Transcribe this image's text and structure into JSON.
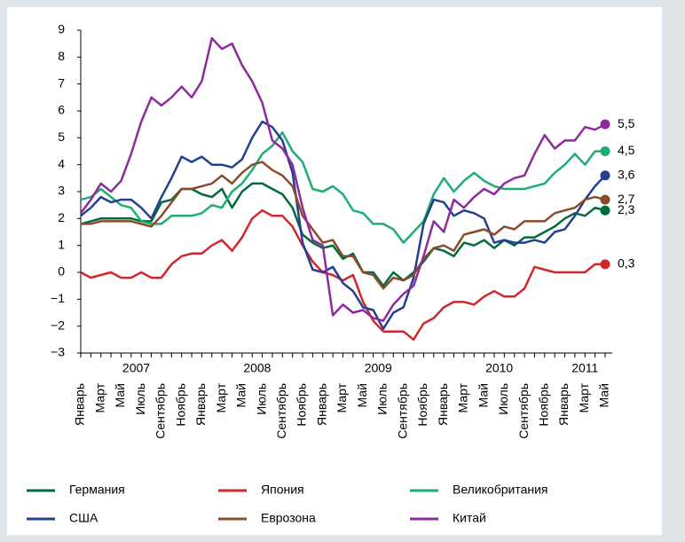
{
  "chart_data": {
    "type": "line",
    "categories": [
      "Январь",
      null,
      "Март",
      null,
      "Май",
      null,
      "Июль",
      null,
      "Сентябрь",
      null,
      "Ноябрь",
      null,
      "Январь",
      null,
      "Март",
      null,
      "Май",
      null,
      "Июль",
      null,
      "Сентябрь",
      null,
      "Ноябрь",
      null,
      "Январь",
      null,
      "Март",
      null,
      "Май",
      null,
      "Июль",
      null,
      "Сентябрь",
      null,
      "Ноябрь",
      null,
      "Январь",
      null,
      "Март",
      null,
      "Май",
      null,
      "Июль",
      null,
      "Сентябрь",
      null,
      "Ноябрь",
      null,
      "Январь",
      null,
      "Март",
      null,
      "Май"
    ],
    "year_labels": [
      "2007",
      "2008",
      "2009",
      "2010",
      "2011"
    ],
    "ylim": [
      -3,
      9
    ],
    "yticks": [
      {
        "value": -3,
        "label": "−3"
      },
      {
        "value": -2,
        "label": "−2"
      },
      {
        "value": -1,
        "label": "−1"
      },
      0,
      1,
      2,
      3,
      4,
      5,
      6,
      7,
      8,
      9
    ],
    "series": [
      {
        "name": "Германия",
        "color": "#006b3c",
        "values": [
          1.8,
          1.9,
          2.0,
          2.0,
          2.0,
          2.0,
          1.9,
          1.9,
          2.6,
          2.7,
          3.1,
          3.1,
          2.9,
          2.8,
          3.1,
          2.4,
          3.0,
          3.3,
          3.3,
          3.1,
          2.9,
          2.4,
          1.4,
          1.1,
          0.9,
          1.0,
          0.5,
          0.7,
          0.0,
          0.0,
          -0.5,
          0.0,
          -0.3,
          0.0,
          0.4,
          0.9,
          0.8,
          0.6,
          1.1,
          1.0,
          1.2,
          0.9,
          1.2,
          1.0,
          1.3,
          1.3,
          1.5,
          1.7,
          2.0,
          2.2,
          2.1,
          2.4,
          2.3
        ],
        "value_labels": [
          null,
          null,
          null,
          null,
          null,
          null,
          null,
          null,
          null,
          null,
          null,
          null,
          null,
          null,
          null,
          null,
          null,
          null,
          null,
          null,
          null,
          null,
          null,
          null,
          null,
          null,
          null,
          null,
          null,
          null,
          null,
          null,
          null,
          null,
          null,
          null,
          null,
          null,
          null,
          null,
          null,
          null,
          null,
          null,
          null,
          null,
          null,
          null,
          null,
          null,
          null,
          null,
          "2,3"
        ]
      },
      {
        "name": "Япония",
        "color": "#d0282a",
        "values": [
          0.0,
          -0.2,
          -0.1,
          0.0,
          -0.2,
          -0.2,
          0.0,
          -0.2,
          -0.2,
          0.3,
          0.6,
          0.7,
          0.7,
          1.0,
          1.2,
          0.8,
          1.3,
          2.0,
          2.3,
          2.1,
          2.1,
          1.7,
          1.0,
          0.4,
          0.0,
          -0.1,
          -0.3,
          -0.1,
          -1.1,
          -1.8,
          -2.2,
          -2.2,
          -2.2,
          -2.5,
          -1.9,
          -1.7,
          -1.3,
          -1.1,
          -1.1,
          -1.2,
          -0.9,
          -0.7,
          -0.9,
          -0.9,
          -0.6,
          0.2,
          0.1,
          0.0,
          0.0,
          0.0,
          0.0,
          0.3,
          0.3
        ],
        "value_labels": [
          null,
          null,
          null,
          null,
          null,
          null,
          null,
          null,
          null,
          null,
          null,
          null,
          null,
          null,
          null,
          null,
          null,
          null,
          null,
          null,
          null,
          null,
          null,
          null,
          null,
          null,
          null,
          null,
          null,
          null,
          null,
          null,
          null,
          null,
          null,
          null,
          null,
          null,
          null,
          null,
          null,
          null,
          null,
          null,
          null,
          null,
          null,
          null,
          null,
          null,
          null,
          null,
          "0,3"
        ]
      },
      {
        "name": "Великобритания",
        "color": "#1fae72",
        "values": [
          2.7,
          2.8,
          3.1,
          2.8,
          2.5,
          2.4,
          1.9,
          1.8,
          1.8,
          2.1,
          2.1,
          2.1,
          2.2,
          2.5,
          2.4,
          3.0,
          3.3,
          3.8,
          4.4,
          4.7,
          5.2,
          4.5,
          4.1,
          3.1,
          3.0,
          3.2,
          2.9,
          2.3,
          2.2,
          1.8,
          1.8,
          1.6,
          1.1,
          1.5,
          1.9,
          2.9,
          3.5,
          3.0,
          3.4,
          3.7,
          3.4,
          3.2,
          3.1,
          3.1,
          3.1,
          3.2,
          3.3,
          3.7,
          4.0,
          4.4,
          4.0,
          4.5,
          4.5
        ],
        "value_labels": [
          null,
          null,
          null,
          null,
          null,
          null,
          null,
          null,
          null,
          null,
          null,
          null,
          null,
          null,
          null,
          null,
          null,
          null,
          null,
          null,
          null,
          null,
          null,
          null,
          null,
          null,
          null,
          null,
          null,
          null,
          null,
          null,
          null,
          null,
          null,
          null,
          null,
          null,
          null,
          null,
          null,
          null,
          null,
          null,
          null,
          null,
          null,
          null,
          null,
          null,
          null,
          null,
          "4,5"
        ]
      },
      {
        "name": "США",
        "color": "#243f8f",
        "values": [
          2.1,
          2.4,
          2.8,
          2.6,
          2.7,
          2.7,
          2.4,
          2.0,
          2.8,
          3.5,
          4.3,
          4.1,
          4.3,
          4.0,
          4.0,
          3.9,
          4.2,
          5.0,
          5.6,
          5.4,
          4.9,
          3.7,
          1.1,
          0.1,
          0.0,
          0.2,
          -0.4,
          -0.7,
          -1.3,
          -1.4,
          -2.1,
          -1.5,
          -1.3,
          -0.2,
          1.8,
          2.7,
          2.6,
          2.1,
          2.3,
          2.2,
          2.0,
          1.1,
          1.2,
          1.1,
          1.1,
          1.2,
          1.1,
          1.5,
          1.6,
          2.1,
          2.7,
          3.2,
          3.6
        ],
        "value_labels": [
          null,
          null,
          null,
          null,
          null,
          null,
          null,
          null,
          null,
          null,
          null,
          null,
          null,
          null,
          null,
          null,
          null,
          null,
          null,
          null,
          null,
          null,
          null,
          null,
          null,
          null,
          null,
          null,
          null,
          null,
          null,
          null,
          null,
          null,
          null,
          null,
          null,
          null,
          null,
          null,
          null,
          null,
          null,
          null,
          null,
          null,
          null,
          null,
          null,
          null,
          null,
          null,
          "3,6"
        ]
      },
      {
        "name": "Еврозона",
        "color": "#8a4b2c",
        "values": [
          1.8,
          1.8,
          1.9,
          1.9,
          1.9,
          1.9,
          1.8,
          1.7,
          2.1,
          2.6,
          3.1,
          3.1,
          3.2,
          3.3,
          3.6,
          3.3,
          3.7,
          4.0,
          4.1,
          3.8,
          3.6,
          3.2,
          2.1,
          1.6,
          1.1,
          1.2,
          0.6,
          0.6,
          0.0,
          -0.1,
          -0.6,
          -0.2,
          -0.3,
          -0.1,
          0.5,
          0.9,
          1.0,
          0.8,
          1.4,
          1.5,
          1.6,
          1.4,
          1.7,
          1.6,
          1.9,
          1.9,
          1.9,
          2.2,
          2.3,
          2.4,
          2.7,
          2.8,
          2.7
        ],
        "value_labels": [
          null,
          null,
          null,
          null,
          null,
          null,
          null,
          null,
          null,
          null,
          null,
          null,
          null,
          null,
          null,
          null,
          null,
          null,
          null,
          null,
          null,
          null,
          null,
          null,
          null,
          null,
          null,
          null,
          null,
          null,
          null,
          null,
          null,
          null,
          null,
          null,
          null,
          null,
          null,
          null,
          null,
          null,
          null,
          null,
          null,
          null,
          null,
          null,
          null,
          null,
          null,
          null,
          "2,7"
        ]
      },
      {
        "name": "Китай",
        "color": "#8e2a9c",
        "values": [
          2.2,
          2.7,
          3.3,
          3.0,
          3.4,
          4.4,
          5.6,
          6.5,
          6.2,
          6.5,
          6.9,
          6.5,
          7.1,
          8.7,
          8.3,
          8.5,
          7.7,
          7.1,
          6.3,
          4.9,
          4.6,
          4.0,
          2.4,
          1.2,
          1.0,
          -1.6,
          -1.2,
          -1.5,
          -1.4,
          -1.7,
          -1.8,
          -1.2,
          -0.8,
          -0.5,
          0.6,
          1.9,
          1.5,
          2.7,
          2.4,
          2.8,
          3.1,
          2.9,
          3.3,
          3.5,
          3.6,
          4.4,
          5.1,
          4.6,
          4.9,
          4.9,
          5.4,
          5.3,
          5.5
        ],
        "value_labels": [
          null,
          null,
          null,
          null,
          null,
          null,
          null,
          null,
          null,
          null,
          null,
          null,
          null,
          null,
          null,
          null,
          null,
          null,
          null,
          null,
          null,
          null,
          null,
          null,
          null,
          null,
          null,
          null,
          null,
          null,
          null,
          null,
          null,
          null,
          null,
          null,
          null,
          null,
          null,
          null,
          null,
          null,
          null,
          null,
          null,
          null,
          null,
          null,
          null,
          null,
          null,
          null,
          "5,5"
        ]
      }
    ]
  }
}
